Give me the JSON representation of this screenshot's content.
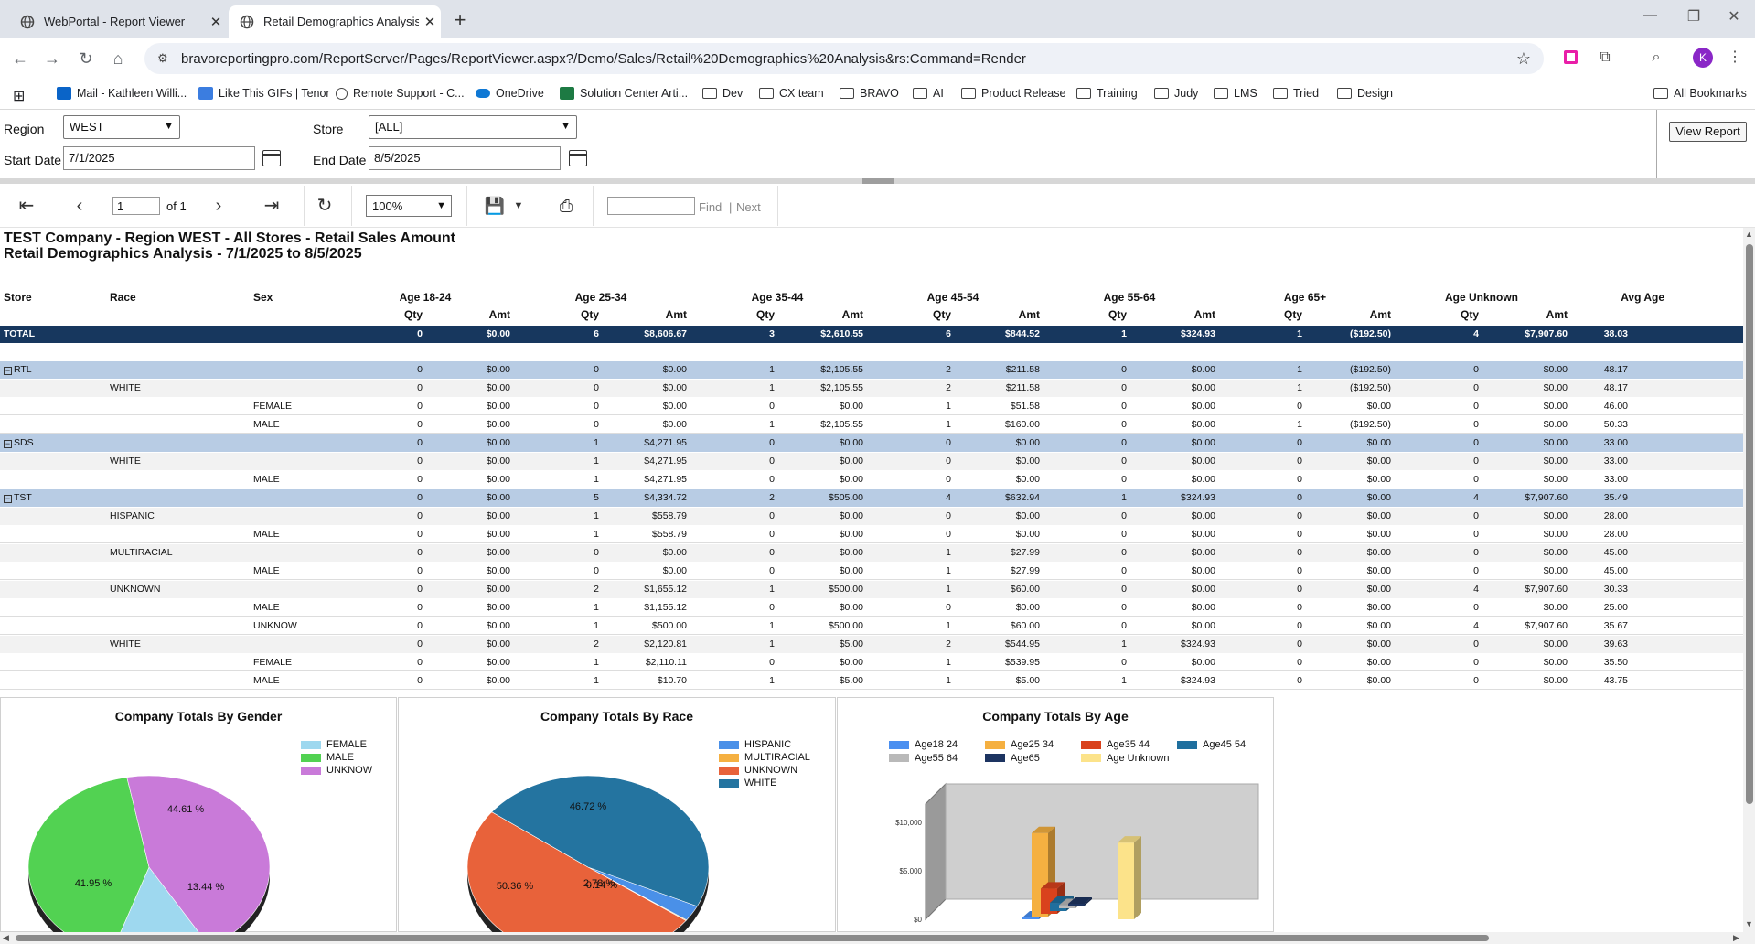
{
  "browser": {
    "tabs": [
      {
        "title": "WebPortal - Report Viewer",
        "icon": "globe-icon"
      },
      {
        "title": "Retail Demographics Analysis -",
        "icon": "globe-icon"
      }
    ],
    "url": "bravoreportingpro.com/ReportServer/Pages/ReportViewer.aspx?/Demo/Sales/Retail%20Demographics%20Analysis&rs:Command=Render",
    "avatar_letter": "K",
    "bookmarks": [
      "Mail - Kathleen Willi...",
      "Like This GIFs | Tenor",
      "Remote Support - C...",
      "OneDrive",
      "Solution Center Arti...",
      "Dev",
      "CX team",
      "BRAVO",
      "AI",
      "Product Release",
      "Training",
      "Judy",
      "LMS",
      "Tried",
      "Design"
    ],
    "all_bookmarks": "All Bookmarks"
  },
  "params": {
    "region_label": "Region",
    "region_value": "WEST",
    "store_label": "Store",
    "store_value": "[ALL]",
    "start_label": "Start Date",
    "start_value": "7/1/2025",
    "end_label": "End Date",
    "end_value": "8/5/2025",
    "view_report": "View Report"
  },
  "toolbar": {
    "page": "1",
    "of": "of 1",
    "zoom": "100%",
    "find": "Find",
    "next": "Next"
  },
  "report": {
    "title1": "TEST Company - Region WEST - All Stores - Retail Sales Amount",
    "title2": "Retail Demographics Analysis - 7/1/2025 to 8/5/2025",
    "col_store": "Store",
    "col_race": "Race",
    "col_sex": "Sex",
    "age_groups": [
      "Age 18-24",
      "Age 25-34",
      "Age 35-44",
      "Age 45-54",
      "Age 55-64",
      "Age 65+",
      "Age Unknown"
    ],
    "avg_age": "Avg Age",
    "qty": "Qty",
    "amt": "Amt",
    "rows": [
      {
        "kind": "total",
        "store": "TOTAL",
        "race": "",
        "sex": "",
        "v": [
          "0",
          "$0.00",
          "6",
          "$8,606.67",
          "3",
          "$2,610.55",
          "6",
          "$844.52",
          "1",
          "$324.93",
          "1",
          "($192.50)",
          "4",
          "$7,907.60"
        ],
        "avg": "38.03"
      },
      {
        "kind": "group",
        "store": "RTL",
        "race": "",
        "sex": "",
        "v": [
          "0",
          "$0.00",
          "0",
          "$0.00",
          "1",
          "$2,105.55",
          "2",
          "$211.58",
          "0",
          "$0.00",
          "1",
          "($192.50)",
          "0",
          "$0.00"
        ],
        "avg": "48.17"
      },
      {
        "kind": "sub",
        "store": "",
        "race": "WHITE",
        "sex": "",
        "v": [
          "0",
          "$0.00",
          "0",
          "$0.00",
          "1",
          "$2,105.55",
          "2",
          "$211.58",
          "0",
          "$0.00",
          "1",
          "($192.50)",
          "0",
          "$0.00"
        ],
        "avg": "48.17"
      },
      {
        "kind": "leaf",
        "store": "",
        "race": "",
        "sex": "FEMALE",
        "v": [
          "0",
          "$0.00",
          "0",
          "$0.00",
          "0",
          "$0.00",
          "1",
          "$51.58",
          "0",
          "$0.00",
          "0",
          "$0.00",
          "0",
          "$0.00"
        ],
        "avg": "46.00"
      },
      {
        "kind": "leaf",
        "store": "",
        "race": "",
        "sex": "MALE",
        "v": [
          "0",
          "$0.00",
          "0",
          "$0.00",
          "1",
          "$2,105.55",
          "1",
          "$160.00",
          "0",
          "$0.00",
          "1",
          "($192.50)",
          "0",
          "$0.00"
        ],
        "avg": "50.33"
      },
      {
        "kind": "group",
        "store": "SDS",
        "race": "",
        "sex": "",
        "v": [
          "0",
          "$0.00",
          "1",
          "$4,271.95",
          "0",
          "$0.00",
          "0",
          "$0.00",
          "0",
          "$0.00",
          "0",
          "$0.00",
          "0",
          "$0.00"
        ],
        "avg": "33.00"
      },
      {
        "kind": "sub",
        "store": "",
        "race": "WHITE",
        "sex": "",
        "v": [
          "0",
          "$0.00",
          "1",
          "$4,271.95",
          "0",
          "$0.00",
          "0",
          "$0.00",
          "0",
          "$0.00",
          "0",
          "$0.00",
          "0",
          "$0.00"
        ],
        "avg": "33.00"
      },
      {
        "kind": "leaf",
        "store": "",
        "race": "",
        "sex": "MALE",
        "v": [
          "0",
          "$0.00",
          "1",
          "$4,271.95",
          "0",
          "$0.00",
          "0",
          "$0.00",
          "0",
          "$0.00",
          "0",
          "$0.00",
          "0",
          "$0.00"
        ],
        "avg": "33.00"
      },
      {
        "kind": "group",
        "store": "TST",
        "race": "",
        "sex": "",
        "v": [
          "0",
          "$0.00",
          "5",
          "$4,334.72",
          "2",
          "$505.00",
          "4",
          "$632.94",
          "1",
          "$324.93",
          "0",
          "$0.00",
          "4",
          "$7,907.60"
        ],
        "avg": "35.49"
      },
      {
        "kind": "sub",
        "store": "",
        "race": "HISPANIC",
        "sex": "",
        "v": [
          "0",
          "$0.00",
          "1",
          "$558.79",
          "0",
          "$0.00",
          "0",
          "$0.00",
          "0",
          "$0.00",
          "0",
          "$0.00",
          "0",
          "$0.00"
        ],
        "avg": "28.00"
      },
      {
        "kind": "leaf",
        "store": "",
        "race": "",
        "sex": "MALE",
        "v": [
          "0",
          "$0.00",
          "1",
          "$558.79",
          "0",
          "$0.00",
          "0",
          "$0.00",
          "0",
          "$0.00",
          "0",
          "$0.00",
          "0",
          "$0.00"
        ],
        "avg": "28.00"
      },
      {
        "kind": "sub",
        "store": "",
        "race": "MULTIRACIAL",
        "sex": "",
        "v": [
          "0",
          "$0.00",
          "0",
          "$0.00",
          "0",
          "$0.00",
          "1",
          "$27.99",
          "0",
          "$0.00",
          "0",
          "$0.00",
          "0",
          "$0.00"
        ],
        "avg": "45.00"
      },
      {
        "kind": "leaf",
        "store": "",
        "race": "",
        "sex": "MALE",
        "v": [
          "0",
          "$0.00",
          "0",
          "$0.00",
          "0",
          "$0.00",
          "1",
          "$27.99",
          "0",
          "$0.00",
          "0",
          "$0.00",
          "0",
          "$0.00"
        ],
        "avg": "45.00"
      },
      {
        "kind": "sub",
        "store": "",
        "race": "UNKNOWN",
        "sex": "",
        "v": [
          "0",
          "$0.00",
          "2",
          "$1,655.12",
          "1",
          "$500.00",
          "1",
          "$60.00",
          "0",
          "$0.00",
          "0",
          "$0.00",
          "4",
          "$7,907.60"
        ],
        "avg": "30.33"
      },
      {
        "kind": "leaf",
        "store": "",
        "race": "",
        "sex": "MALE",
        "v": [
          "0",
          "$0.00",
          "1",
          "$1,155.12",
          "0",
          "$0.00",
          "0",
          "$0.00",
          "0",
          "$0.00",
          "0",
          "$0.00",
          "0",
          "$0.00"
        ],
        "avg": "25.00"
      },
      {
        "kind": "leaf",
        "store": "",
        "race": "",
        "sex": "UNKNOW",
        "v": [
          "0",
          "$0.00",
          "1",
          "$500.00",
          "1",
          "$500.00",
          "1",
          "$60.00",
          "0",
          "$0.00",
          "0",
          "$0.00",
          "4",
          "$7,907.60"
        ],
        "avg": "35.67"
      },
      {
        "kind": "sub",
        "store": "",
        "race": "WHITE",
        "sex": "",
        "v": [
          "0",
          "$0.00",
          "2",
          "$2,120.81",
          "1",
          "$5.00",
          "2",
          "$544.95",
          "1",
          "$324.93",
          "0",
          "$0.00",
          "0",
          "$0.00"
        ],
        "avg": "39.63"
      },
      {
        "kind": "leaf",
        "store": "",
        "race": "",
        "sex": "FEMALE",
        "v": [
          "0",
          "$0.00",
          "1",
          "$2,110.11",
          "0",
          "$0.00",
          "1",
          "$539.95",
          "0",
          "$0.00",
          "0",
          "$0.00",
          "0",
          "$0.00"
        ],
        "avg": "35.50"
      },
      {
        "kind": "leaf",
        "store": "",
        "race": "",
        "sex": "MALE",
        "v": [
          "0",
          "$0.00",
          "1",
          "$10.70",
          "1",
          "$5.00",
          "1",
          "$5.00",
          "1",
          "$324.93",
          "0",
          "$0.00",
          "0",
          "$0.00"
        ],
        "avg": "43.75"
      }
    ]
  },
  "chart_data": [
    {
      "type": "pie",
      "title": "Company Totals By Gender",
      "categories": [
        "FEMALE",
        "MALE",
        "UNKNOW"
      ],
      "values": [
        13.44,
        41.95,
        44.61
      ],
      "labels": [
        "13.44 %",
        "41.95 %",
        "44.61 %"
      ],
      "colors": [
        "#9ed8ef",
        "#52d252",
        "#c97ad9"
      ],
      "legend": "top-right"
    },
    {
      "type": "pie",
      "title": "Company Totals By Race",
      "categories": [
        "HISPANIC",
        "MULTIRACIAL",
        "UNKNOWN",
        "WHITE"
      ],
      "values": [
        2.78,
        0.14,
        50.36,
        46.72
      ],
      "labels": [
        "2.78 %",
        "0.14 %",
        "50.36 %",
        "46.72 %"
      ],
      "colors": [
        "#4a90e8",
        "#f5b041",
        "#e8623a",
        "#2474a0"
      ],
      "legend": "top-right"
    },
    {
      "type": "bar",
      "title": "Company Totals By Age",
      "categories": [
        "Age18 24",
        "Age25 34",
        "Age35 44",
        "Age45 54",
        "Age55 64",
        "Age65",
        "Age Unknown"
      ],
      "values": [
        0,
        8606.67,
        2610.55,
        844.52,
        324.93,
        -192.5,
        7907.6
      ],
      "colors": [
        "#4a8ff0",
        "#f5b041",
        "#d9421d",
        "#1f6f9e",
        "#b9b9b9",
        "#1d3461",
        "#fce38a"
      ],
      "yticks": [
        "$0",
        "$5,000",
        "$10,000"
      ],
      "ylim": [
        0,
        10000
      ],
      "legend": "top"
    }
  ]
}
